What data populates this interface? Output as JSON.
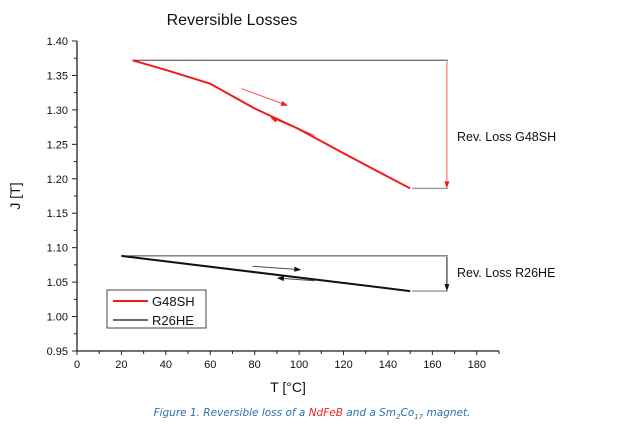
{
  "chart_data": {
    "type": "line",
    "title": "Reversible Losses",
    "xlabel": "T [°C]",
    "ylabel": "J [T]",
    "xlim": [
      0,
      190
    ],
    "ylim": [
      0.95,
      1.4
    ],
    "xticks": [
      0,
      20,
      40,
      60,
      80,
      100,
      120,
      140,
      160,
      180
    ],
    "yticks": [
      0.95,
      1.0,
      1.05,
      1.1,
      1.15,
      1.2,
      1.25,
      1.3,
      1.35,
      1.4
    ],
    "xtick_labels": [
      "0",
      "20",
      "40",
      "60",
      "80",
      "100",
      "120",
      "140",
      "160",
      "180"
    ],
    "ytick_labels": [
      "0.95",
      "1.00",
      "1.05",
      "1.10",
      "1.15",
      "1.20",
      "1.25",
      "1.30",
      "1.35",
      "1.40"
    ],
    "grid": false,
    "legend_position": "bottom-left",
    "series": [
      {
        "name": "G48SH",
        "color": "#ee1c1c",
        "x": [
          25,
          40,
          60,
          80,
          100,
          120,
          140,
          150
        ],
        "y": [
          1.372,
          1.358,
          1.338,
          1.302,
          1.272,
          1.237,
          1.203,
          1.186
        ]
      },
      {
        "name": "R26HE",
        "color": "#111111",
        "x": [
          20,
          150
        ],
        "y": [
          1.088,
          1.037
        ]
      }
    ],
    "annotations": [
      {
        "text": "Rev. Loss G48SH",
        "color": "#ee1c1c",
        "ref_top": 1.372,
        "ref_bottom": 1.186,
        "x_from": 25,
        "x_at": 167
      },
      {
        "text": "Rev. Loss R26HE",
        "color": "#111111",
        "ref_top": 1.088,
        "ref_bottom": 1.037,
        "x_from": 20,
        "x_at": 167
      }
    ]
  },
  "caption": {
    "prefix": "Figure 1. Reversible loss of a ",
    "highlight": "NdFeB",
    "middle": " and a Sm",
    "sub1": "2",
    "co": "Co",
    "sub2": "17",
    "suffix": " magnet."
  },
  "colors": {
    "caption": "#2e6fad",
    "highlight": "#e8282b"
  }
}
